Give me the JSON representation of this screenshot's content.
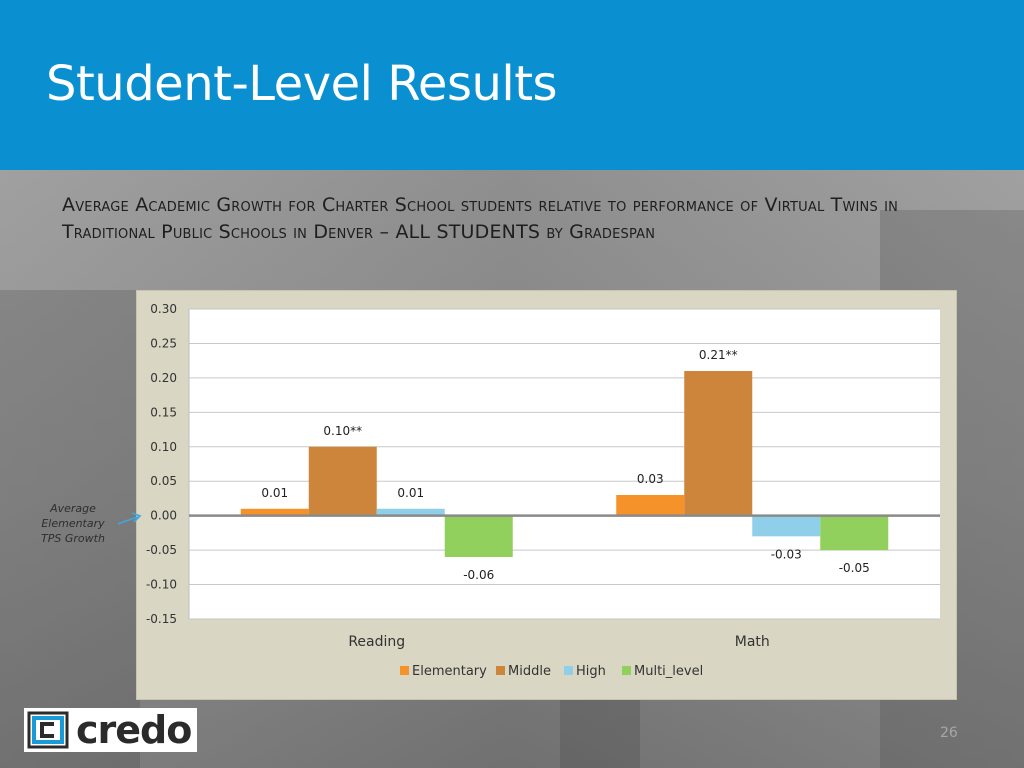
{
  "slide": {
    "title": "Student-Level Results",
    "subtitle": "Average Academic Growth for Charter School students relative to performance of Virtual Twins in Traditional Public Schools in Denver – ALL STUDENTS by Gradespan",
    "annotation": "Average Elementary TPS Growth",
    "logo_text": "credo",
    "page_number": "26",
    "colors": {
      "header": "#0a8fd0",
      "elementary": "#f5922a",
      "middle": "#cd843b",
      "high": "#8fcfe9",
      "multi_level": "#92d05d"
    }
  },
  "chart_data": {
    "type": "bar",
    "categories": [
      "Reading",
      "Math"
    ],
    "series": [
      {
        "name": "Elementary",
        "values": [
          0.01,
          0.03
        ],
        "labels": [
          "0.01",
          "0.03"
        ],
        "color": "#f5922a"
      },
      {
        "name": "Middle",
        "values": [
          0.1,
          0.21
        ],
        "labels": [
          "0.10**",
          "0.21**"
        ],
        "color": "#cd843b"
      },
      {
        "name": "High",
        "values": [
          0.01,
          -0.03
        ],
        "labels": [
          "0.01",
          "-0.03"
        ],
        "color": "#8fcfe9"
      },
      {
        "name": "Multi_level",
        "values": [
          -0.06,
          -0.05
        ],
        "labels": [
          "-0.06",
          "-0.05"
        ],
        "color": "#92d05d"
      }
    ],
    "ylim": [
      -0.15,
      0.3
    ],
    "yticks": [
      "0.30",
      "0.25",
      "0.20",
      "0.15",
      "0.10",
      "0.05",
      "0.00",
      "-0.05",
      "-0.10",
      "-0.15"
    ],
    "grid": true,
    "legend_position": "bottom"
  }
}
